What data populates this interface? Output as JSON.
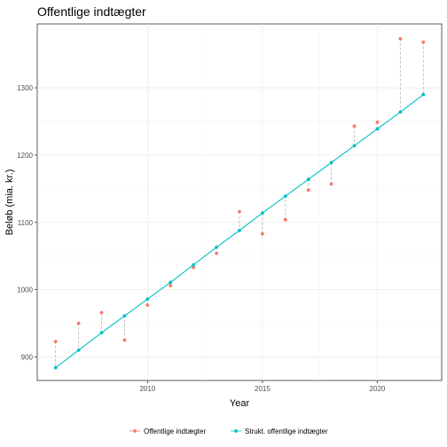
{
  "chart_data": {
    "type": "line",
    "title": "Offentlige indtægter",
    "xlabel": "Year",
    "ylabel": "Beløb (mia. kr.)",
    "xlim": [
      2005.2,
      2022.8
    ],
    "ylim": [
      865,
      1395
    ],
    "x_ticks": [
      2010,
      2015,
      2020
    ],
    "y_ticks": [
      900,
      1000,
      1100,
      1200,
      1300
    ],
    "grid": true,
    "legend_position": "bottom",
    "x": [
      2006,
      2007,
      2008,
      2009,
      2010,
      2011,
      2012,
      2013,
      2014,
      2015,
      2016,
      2017,
      2018,
      2019,
      2020,
      2021,
      2022
    ],
    "series": [
      {
        "name": "Offentlige indtægter",
        "color": "#F8766D",
        "values": [
          923,
          950,
          966,
          925,
          977,
          1006,
          1033,
          1054,
          1116,
          1083,
          1104,
          1148,
          1157,
          1243,
          1249,
          1373,
          1368
        ]
      },
      {
        "name": "Strukt. offentlige indtægter",
        "color": "#00BFC4",
        "values": [
          884,
          910,
          936,
          961,
          986,
          1011,
          1037,
          1063,
          1088,
          1114,
          1139,
          1164,
          1189,
          1214,
          1239,
          1264,
          1290
        ]
      }
    ]
  }
}
